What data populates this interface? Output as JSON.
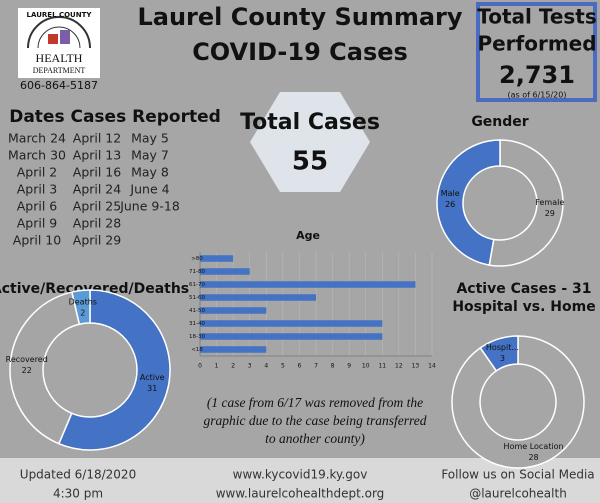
{
  "header": {
    "title_lines": [
      "Laurel County Summary",
      "COVID-19 Cases"
    ],
    "logo_lines": [
      "LAUREL COUNTY",
      "HEALTH",
      "DEPARTMENT"
    ],
    "phone": "606-864-5187"
  },
  "tests": {
    "lines": [
      "Total Tests",
      "Performed"
    ],
    "value": "2,731",
    "note": "(as of 6/15/20)"
  },
  "total_cases": {
    "label": "Total Cases",
    "value": "55"
  },
  "dates": {
    "title": "Dates Cases Reported",
    "columns": [
      [
        "March 24",
        "March 30",
        "April 2",
        "April 3",
        "April 6",
        "April 9",
        "April 10"
      ],
      [
        "April 12",
        "April 13",
        "April 16",
        "April 24",
        "April 25",
        "April 28",
        "April 29"
      ],
      [
        "May 5",
        "May 7",
        "May 8",
        "June 4",
        "June 9-18"
      ]
    ]
  },
  "note_lines": [
    "(1 case from 6/17 was removed from the",
    "graphic due to the case being transferred",
    "to another county)"
  ],
  "footer": {
    "left": [
      "Updated 6/18/2020",
      "4:30 pm"
    ],
    "center": [
      "www.kycovid19.ky.gov",
      "www.laurelcohealthdept.org"
    ],
    "right": [
      "Follow us on Social Media",
      "@laurelcohealth"
    ]
  },
  "chart_data": [
    {
      "type": "donut",
      "title": "Gender",
      "categories": [
        "Female",
        "Male"
      ],
      "values": [
        29,
        26
      ],
      "colors": [
        "#a5a5a5",
        "#4472c4"
      ]
    },
    {
      "type": "bar",
      "title": "Age",
      "categories": [
        ">80",
        "71-80",
        "61-70",
        "51-60",
        "41-50",
        "31-40",
        "18-30",
        "<18"
      ],
      "values": [
        2,
        3,
        13,
        7,
        4,
        11,
        11,
        4
      ],
      "color": "#4472c4",
      "xlim": [
        0,
        14
      ],
      "xticks": [
        0,
        1,
        2,
        3,
        4,
        5,
        6,
        7,
        8,
        9,
        10,
        11,
        12,
        13,
        14
      ],
      "grid": true
    },
    {
      "type": "donut",
      "title": "Active/Recovered/Deaths",
      "categories": [
        "Active",
        "Recovered",
        "Deaths"
      ],
      "values": [
        31,
        22,
        2
      ],
      "colors": [
        "#4472c4",
        "#a5a5a5",
        "#5b9bd5"
      ]
    },
    {
      "type": "donut",
      "title": "Active Cases - 31",
      "subtitle": "Hospital vs. Home",
      "categories": [
        "Home Location",
        "Hospit..."
      ],
      "values": [
        28,
        3
      ],
      "colors": [
        "#a6a6a6",
        "#4472c4"
      ]
    }
  ]
}
